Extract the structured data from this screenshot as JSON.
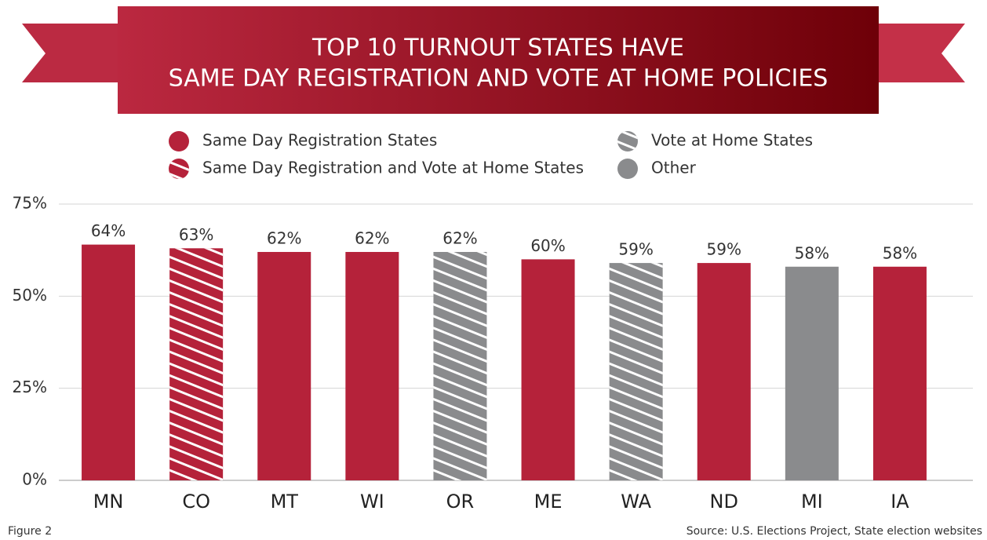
{
  "chart_data": {
    "type": "bar",
    "title": [
      "TOP 10 TURNOUT STATES HAVE",
      "SAME DAY REGISTRATION AND VOTE AT HOME POLICIES"
    ],
    "categories": [
      "MN",
      "CO",
      "MT",
      "WI",
      "OR",
      "ME",
      "WA",
      "ND",
      "MI",
      "IA"
    ],
    "values": [
      64,
      63,
      62,
      62,
      62,
      60,
      59,
      59,
      58,
      58
    ],
    "value_labels": [
      "64%",
      "63%",
      "62%",
      "62%",
      "62%",
      "60%",
      "59%",
      "59%",
      "58%",
      "58%"
    ],
    "bar_colors": [
      "#b5223a",
      "#b5223a",
      "#b5223a",
      "#b5223a",
      "#8a8b8d",
      "#b5223a",
      "#8a8b8d",
      "#b5223a",
      "#8a8b8d",
      "#b5223a"
    ],
    "bar_hatch": [
      false,
      true,
      false,
      false,
      true,
      false,
      true,
      false,
      false,
      false
    ],
    "legend": [
      {
        "name": "Same Day Registration States",
        "color": "#b5223a",
        "hatch": false
      },
      {
        "name": "Same Day Registration and Vote at Home States",
        "color": "#b5223a",
        "hatch": true
      },
      {
        "name": "Vote at Home States",
        "color": "#8a8b8d",
        "hatch": true
      },
      {
        "name": "Other",
        "color": "#8a8b8d",
        "hatch": false
      }
    ],
    "ylim": [
      0,
      75
    ],
    "yticks": [
      {
        "value": 0,
        "label": "0%"
      },
      {
        "value": 25,
        "label": "25%"
      },
      {
        "value": 50,
        "label": "50%"
      },
      {
        "value": 75,
        "label": "75%"
      }
    ],
    "grid": true,
    "figure_label": "Figure 2",
    "source": "Source: U.S. Elections Project, State election websites"
  }
}
